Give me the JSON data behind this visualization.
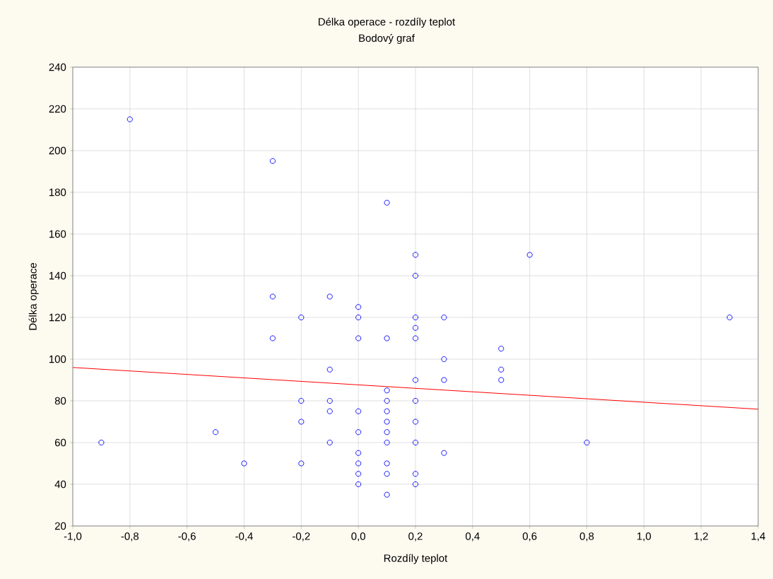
{
  "chart_data": {
    "type": "scatter",
    "title": "Délka operace - rozdíly teplot",
    "subtitle": "Bodový graf",
    "xlabel": "Rozdíly teplot",
    "ylabel": "Délka operace",
    "xlim": [
      -1,
      1.4
    ],
    "ylim": [
      20,
      240
    ],
    "xticks": [
      {
        "value": -1,
        "label": "-1,0"
      },
      {
        "value": -0.8,
        "label": "-0,8"
      },
      {
        "value": -0.6,
        "label": "-0,6"
      },
      {
        "value": -0.4,
        "label": "-0,4"
      },
      {
        "value": -0.2,
        "label": "-0,2"
      },
      {
        "value": 0,
        "label": "0,0"
      },
      {
        "value": 0.2,
        "label": "0,2"
      },
      {
        "value": 0.4,
        "label": "0,4"
      },
      {
        "value": 0.6,
        "label": "0,6"
      },
      {
        "value": 0.8,
        "label": "0,8"
      },
      {
        "value": 1,
        "label": "1,0"
      },
      {
        "value": 1.2,
        "label": "1,2"
      },
      {
        "value": 1.4,
        "label": "1,4"
      }
    ],
    "yticks": [
      20,
      40,
      60,
      80,
      100,
      120,
      140,
      160,
      180,
      200,
      220,
      240
    ],
    "grid": true,
    "series": [
      {
        "type": "scatter",
        "color": "#0000ff",
        "marker": "circle",
        "x": [
          -0.9,
          -0.8,
          -0.5,
          -0.4,
          -0.3,
          -0.3,
          -0.3,
          -0.2,
          -0.2,
          -0.2,
          -0.2,
          -0.1,
          -0.1,
          -0.1,
          -0.1,
          -0.1,
          0,
          0,
          0,
          0,
          0,
          0,
          0,
          0,
          0,
          0.1,
          0.1,
          0.1,
          0.1,
          0.1,
          0.1,
          0.1,
          0.1,
          0.1,
          0.1,
          0.1,
          0.2,
          0.2,
          0.2,
          0.2,
          0.2,
          0.2,
          0.2,
          0.2,
          0.2,
          0.2,
          0.2,
          0.3,
          0.3,
          0.3,
          0.3,
          0.5,
          0.5,
          0.5,
          0.6,
          0.8,
          1.3
        ],
        "values": [
          60,
          215,
          65,
          50,
          195,
          130,
          110,
          120,
          80,
          70,
          50,
          130,
          95,
          80,
          75,
          60,
          125,
          120,
          110,
          75,
          65,
          55,
          50,
          45,
          40,
          175,
          110,
          85,
          80,
          75,
          70,
          65,
          60,
          50,
          45,
          35,
          150,
          140,
          120,
          115,
          110,
          90,
          80,
          70,
          60,
          45,
          40,
          120,
          100,
          90,
          55,
          105,
          95,
          90,
          150,
          60,
          120
        ]
      },
      {
        "type": "line",
        "color": "#ff0000",
        "marker": "none",
        "line_style": "solid",
        "x": [
          -1,
          1.4
        ],
        "values": [
          96,
          76
        ]
      }
    ]
  }
}
